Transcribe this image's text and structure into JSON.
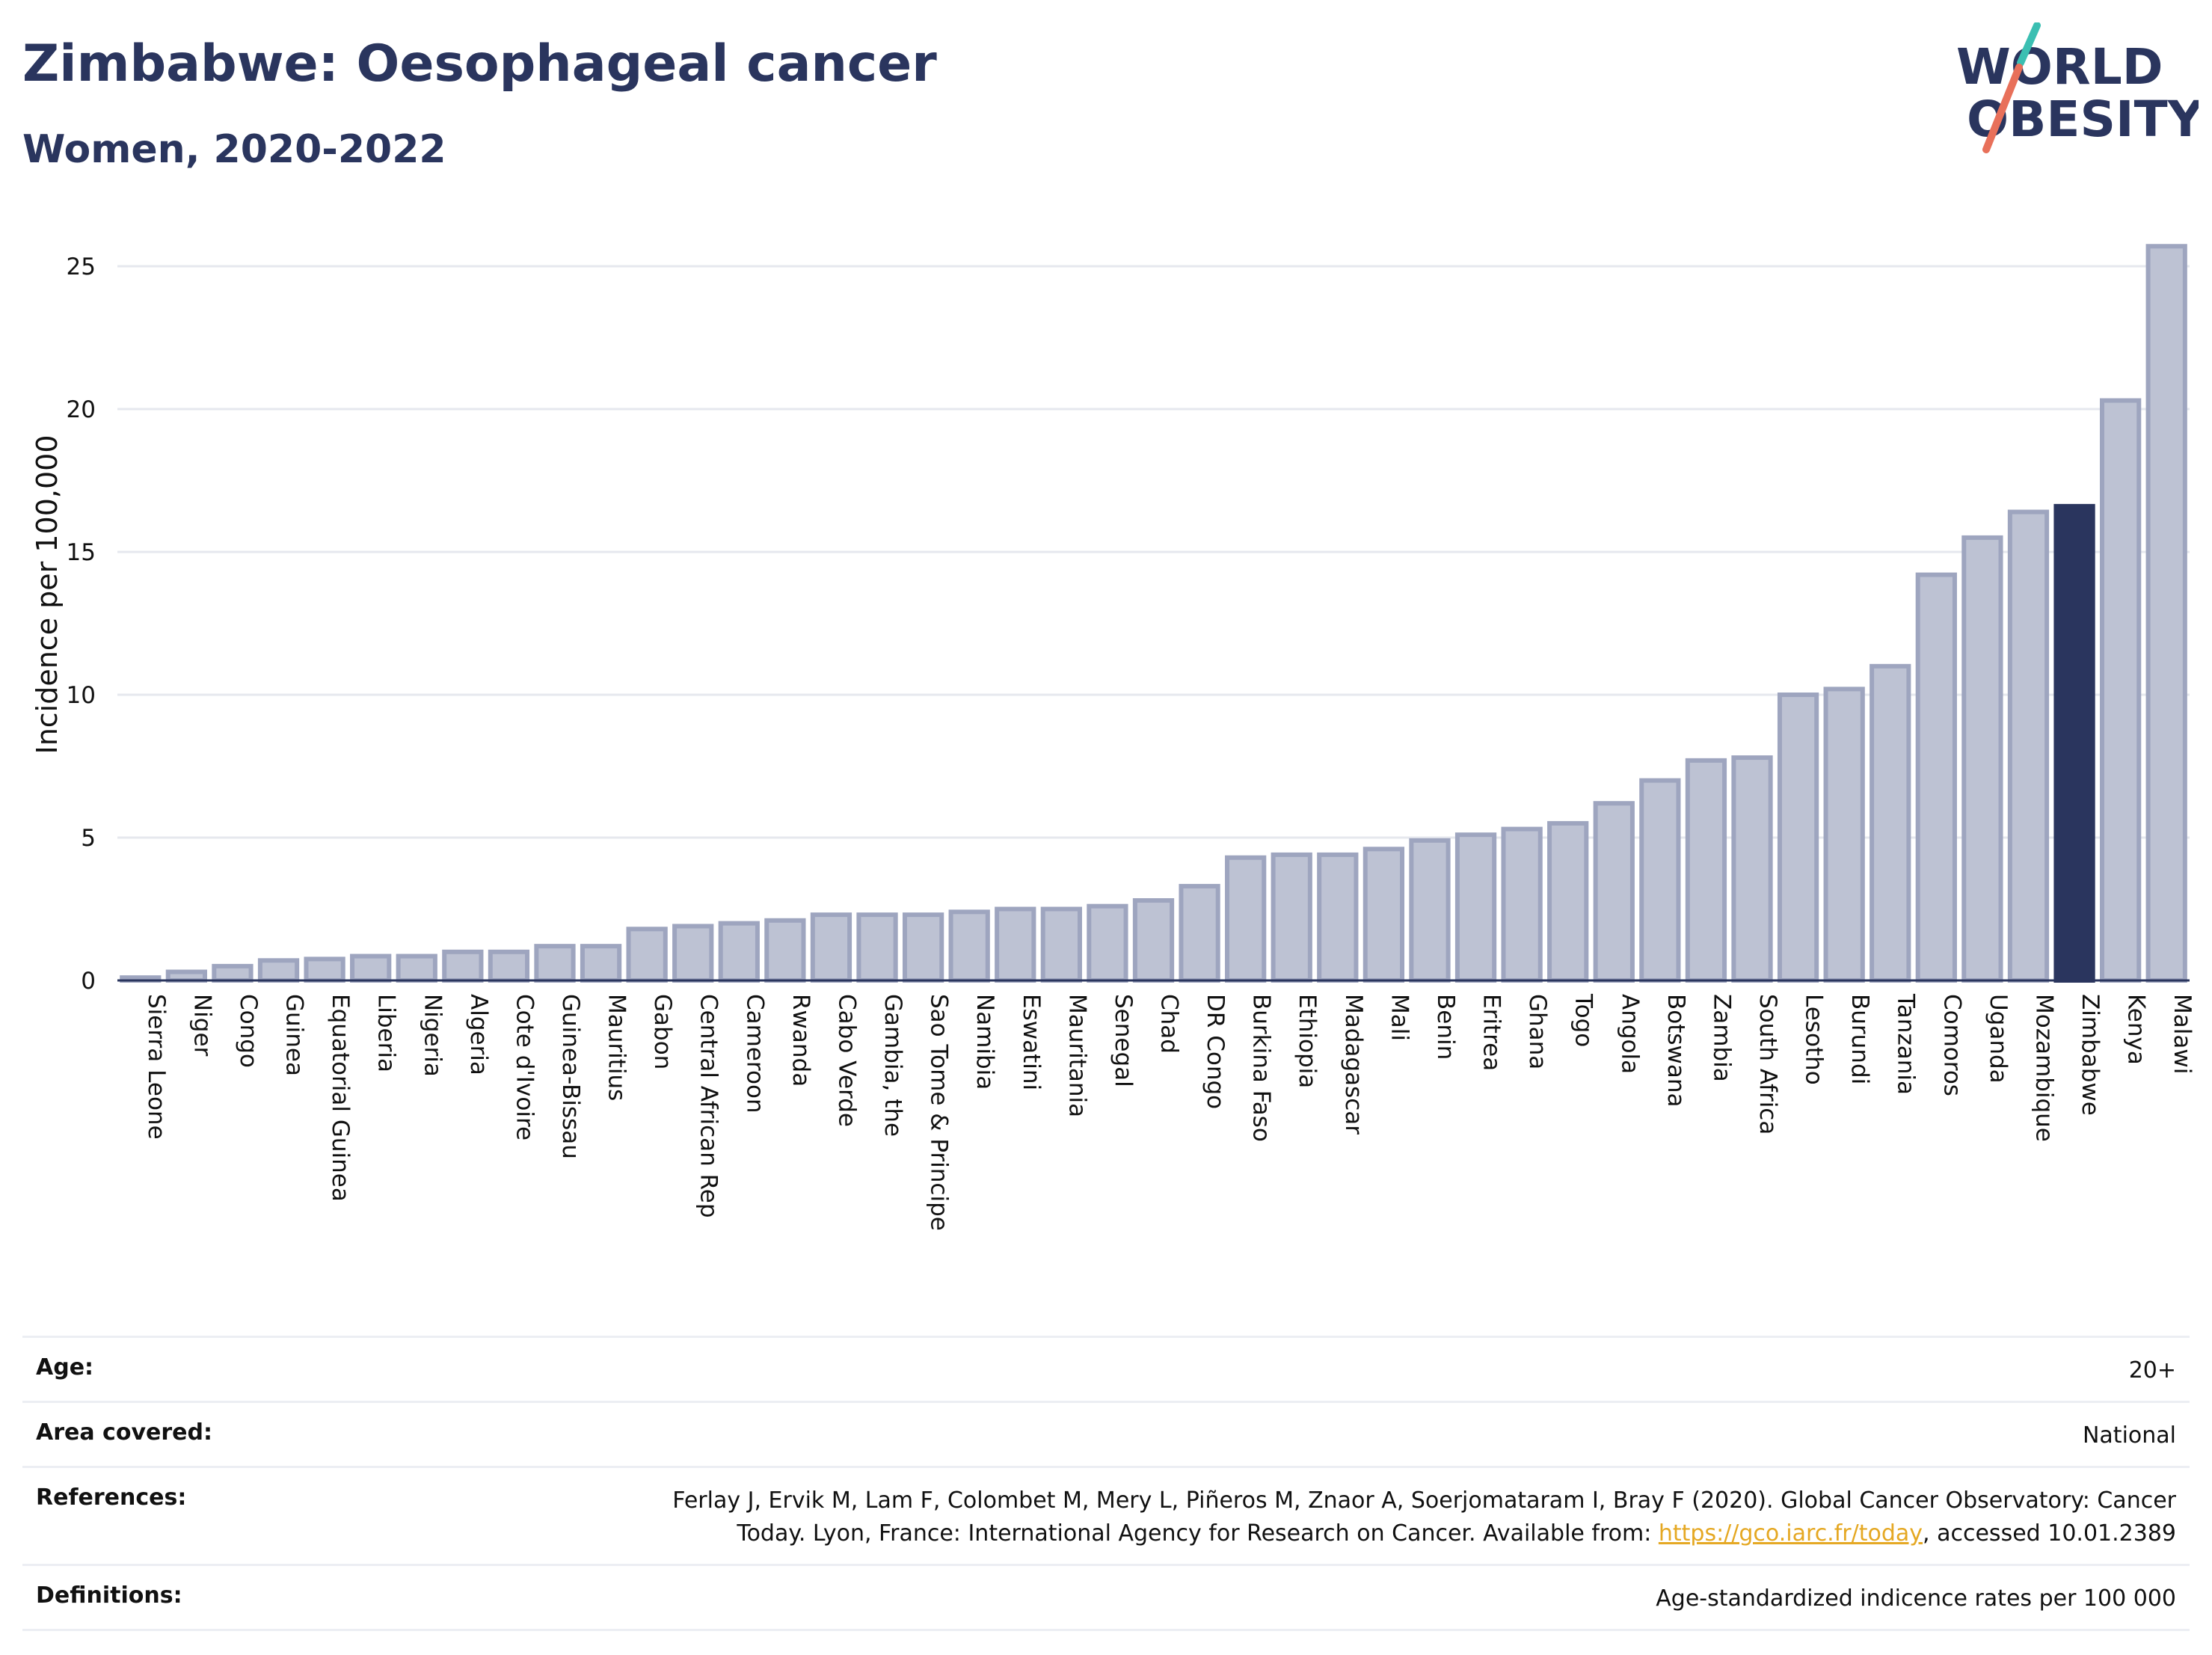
{
  "header": {
    "title": "Zimbabwe: Oesophageal cancer",
    "subtitle": "Women, 2020-2022"
  },
  "logo": {
    "line1": "WORLD",
    "line2": "OBESITY",
    "colors": {
      "text": "#2a355e",
      "slash_top": "#3bbfb2",
      "slash_bottom": "#e8705a"
    }
  },
  "chart_data": {
    "type": "bar",
    "title": "Zimbabwe: Oesophageal cancer",
    "subtitle": "Women, 2020-2022",
    "ylabel": "Incidence per 100,000",
    "ylim": [
      0,
      26.5
    ],
    "yticks": [
      0,
      5,
      10,
      15,
      20,
      25
    ],
    "grid": true,
    "highlight": "Zimbabwe",
    "colors": {
      "bar": "#bdc2d3",
      "bar_edge": "#9ea5bf",
      "highlight": "#2a355e",
      "grid": "#e6e8ee",
      "axis": "#2a355e"
    },
    "categories": [
      "Sierra Leone",
      "Niger",
      "Congo",
      "Guinea",
      "Equatorial Guinea",
      "Liberia",
      "Nigeria",
      "Algeria",
      "Cote d'Ivoire",
      "Guinea-Bissau",
      "Mauritius",
      "Gabon",
      "Central African Rep",
      "Cameroon",
      "Rwanda",
      "Cabo Verde",
      "Gambia, the",
      "Sao Tome & Principe",
      "Namibia",
      "Eswatini",
      "Mauritania",
      "Senegal",
      "Chad",
      "DR Congo",
      "Burkina Faso",
      "Ethiopia",
      "Madagascar",
      "Mali",
      "Benin",
      "Eritrea",
      "Ghana",
      "Togo",
      "Angola",
      "Botswana",
      "Zambia",
      "South Africa",
      "Lesotho",
      "Burundi",
      "Tanzania",
      "Comoros",
      "Uganda",
      "Mozambique",
      "Zimbabwe",
      "Kenya",
      "Malawi"
    ],
    "values": [
      0.1,
      0.3,
      0.5,
      0.7,
      0.75,
      0.85,
      0.85,
      1.0,
      1.0,
      1.2,
      1.2,
      1.8,
      1.9,
      2.0,
      2.1,
      2.3,
      2.3,
      2.3,
      2.4,
      2.5,
      2.5,
      2.6,
      2.8,
      3.3,
      4.3,
      4.4,
      4.4,
      4.6,
      4.9,
      5.1,
      5.3,
      5.5,
      6.2,
      7.0,
      7.7,
      7.8,
      10.0,
      10.2,
      11.0,
      14.2,
      15.5,
      16.4,
      16.6,
      20.3,
      25.7
    ]
  },
  "meta": {
    "rows": [
      {
        "key": "Age:",
        "value": "20+"
      },
      {
        "key": "Area covered:",
        "value": "National"
      },
      {
        "key": "Definitions:",
        "value": "Age-standardized indicence rates per 100 000"
      }
    ],
    "references": {
      "key": "References:",
      "line1": "Ferlay J, Ervik M, Lam F, Colombet M, Mery L, Piñeros M, Znaor A, Soerjomataram I, Bray F (2020). Global Cancer Observatory: Cancer",
      "line2_pre": "Today. Lyon, France: International Agency for Research on Cancer. Available from: ",
      "link": "https://gco.iarc.fr/today",
      "line2_post": ", accessed 10.01.2389"
    }
  }
}
